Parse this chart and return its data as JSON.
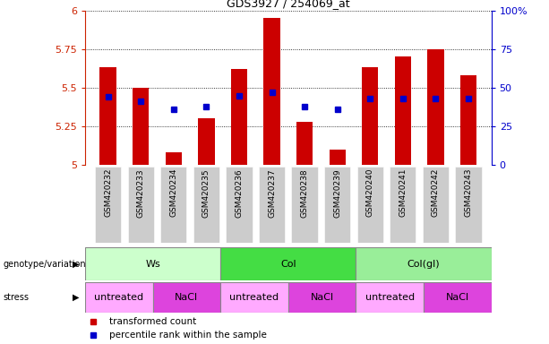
{
  "title": "GDS3927 / 254069_at",
  "samples": [
    "GSM420232",
    "GSM420233",
    "GSM420234",
    "GSM420235",
    "GSM420236",
    "GSM420237",
    "GSM420238",
    "GSM420239",
    "GSM420240",
    "GSM420241",
    "GSM420242",
    "GSM420243"
  ],
  "bar_values": [
    5.63,
    5.5,
    5.08,
    5.3,
    5.62,
    5.95,
    5.28,
    5.1,
    5.63,
    5.7,
    5.75,
    5.58
  ],
  "bar_base": 5.0,
  "percentile_values": [
    5.44,
    5.41,
    5.36,
    5.38,
    5.45,
    5.47,
    5.38,
    5.36,
    5.43,
    5.43,
    5.43,
    5.43
  ],
  "bar_color": "#cc0000",
  "percentile_color": "#0000cc",
  "ylim": [
    5.0,
    6.0
  ],
  "yticks_left": [
    5.0,
    5.25,
    5.5,
    5.75,
    6.0
  ],
  "ytick_labels_left": [
    "5",
    "5.25",
    "5.5",
    "5.75",
    "6"
  ],
  "yticks_right": [
    0,
    25,
    50,
    75,
    100
  ],
  "ytick_labels_right": [
    "0",
    "25",
    "50",
    "75",
    "100%"
  ],
  "genotype_groups": [
    {
      "label": "Ws",
      "start": 0,
      "end": 4,
      "color": "#ccffcc"
    },
    {
      "label": "Col",
      "start": 4,
      "end": 8,
      "color": "#44dd44"
    },
    {
      "label": "Col(gl)",
      "start": 8,
      "end": 12,
      "color": "#99ee99"
    }
  ],
  "stress_groups": [
    {
      "label": "untreated",
      "start": 0,
      "end": 2,
      "color": "#ffaaff"
    },
    {
      "label": "NaCl",
      "start": 2,
      "end": 4,
      "color": "#dd44dd"
    },
    {
      "label": "untreated",
      "start": 4,
      "end": 6,
      "color": "#ffaaff"
    },
    {
      "label": "NaCl",
      "start": 6,
      "end": 8,
      "color": "#dd44dd"
    },
    {
      "label": "untreated",
      "start": 8,
      "end": 10,
      "color": "#ffaaff"
    },
    {
      "label": "NaCl",
      "start": 10,
      "end": 12,
      "color": "#dd44dd"
    }
  ],
  "legend_items": [
    {
      "label": "transformed count",
      "color": "#cc0000"
    },
    {
      "label": "percentile rank within the sample",
      "color": "#0000cc"
    }
  ],
  "bar_width": 0.5,
  "grid_color": "#000000",
  "background_color": "#ffffff",
  "tick_color_left": "#cc2200",
  "tick_color_right": "#0000cc",
  "xtick_bg": "#cccccc",
  "label_left_genotype": "genotype/variation",
  "label_left_stress": "stress"
}
